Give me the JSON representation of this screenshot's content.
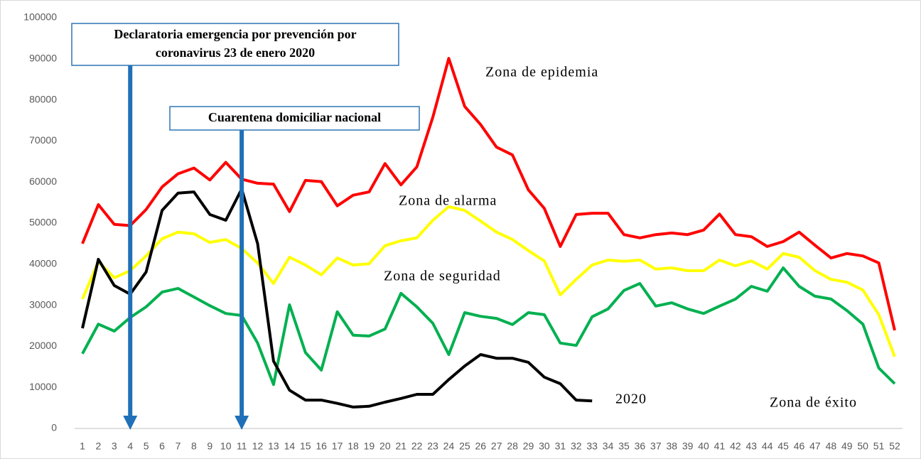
{
  "chart_data": {
    "type": "line",
    "categories": [
      1,
      2,
      3,
      4,
      5,
      6,
      7,
      8,
      9,
      10,
      11,
      12,
      13,
      14,
      15,
      16,
      17,
      18,
      19,
      20,
      21,
      22,
      23,
      24,
      25,
      26,
      27,
      28,
      29,
      30,
      31,
      32,
      33,
      34,
      35,
      36,
      37,
      38,
      39,
      40,
      41,
      42,
      43,
      44,
      45,
      46,
      47,
      48,
      49,
      50,
      51,
      52
    ],
    "ylim": [
      0,
      100000
    ],
    "yticks": [
      0,
      10000,
      20000,
      30000,
      40000,
      50000,
      60000,
      70000,
      80000,
      90000,
      100000
    ],
    "grid": false,
    "series": [
      {
        "name": "Zona de epidemia",
        "color": "#ff0000",
        "values": [
          45000,
          54500,
          49700,
          49400,
          53300,
          58800,
          62000,
          63400,
          60500,
          64800,
          60700,
          59700,
          59500,
          52800,
          60400,
          60100,
          54200,
          56800,
          57600,
          64500,
          59300,
          63700,
          75800,
          90100,
          78400,
          74000,
          68500,
          66600,
          58100,
          53600,
          44300,
          52100,
          52400,
          52400,
          47200,
          46400,
          47200,
          47600,
          47200,
          48300,
          52200,
          47200,
          46700,
          44300,
          45500,
          47800,
          44600,
          41500,
          42600,
          42000,
          40300,
          23900
        ]
      },
      {
        "name": "Zona de alarma",
        "color": "#ffff00",
        "values": [
          31500,
          40600,
          36700,
          38400,
          42000,
          46200,
          47800,
          47400,
          45300,
          46000,
          43800,
          40300,
          35300,
          41700,
          39800,
          37400,
          41500,
          39800,
          40100,
          44500,
          45700,
          46400,
          50700,
          54000,
          53100,
          50500,
          47800,
          46000,
          43300,
          40800,
          32500,
          36300,
          39800,
          41000,
          40700,
          41000,
          38800,
          39100,
          38400,
          38400,
          41000,
          39600,
          40800,
          38800,
          42600,
          41700,
          38400,
          36300,
          35600,
          33700,
          27700,
          17500
        ]
      },
      {
        "name": "Zona de seguridad",
        "color": "#00b050",
        "values": [
          18200,
          25400,
          23700,
          27000,
          29600,
          33200,
          34100,
          32000,
          29900,
          28000,
          27500,
          20800,
          10700,
          30100,
          18500,
          14200,
          28400,
          22700,
          22500,
          24200,
          32900,
          29600,
          25600,
          18000,
          28200,
          27300,
          26800,
          25300,
          28200,
          27700,
          20800,
          20200,
          27200,
          29100,
          33600,
          35300,
          29800,
          30600,
          29100,
          28000,
          29800,
          31500,
          34600,
          33400,
          39100,
          34600,
          32200,
          31500,
          28700,
          25400,
          14700,
          10900
        ]
      },
      {
        "name": "2020",
        "color": "#000000",
        "values": [
          24400,
          41200,
          34800,
          32700,
          38100,
          53100,
          57300,
          57600,
          52100,
          50700,
          58300,
          45000,
          16400,
          9300,
          6900,
          6900,
          6100,
          5200,
          5400,
          6400,
          7300,
          8300,
          8300,
          11900,
          15200,
          18000,
          17100,
          17100,
          16100,
          12500,
          10900,
          6900,
          6700,
          null,
          null,
          null,
          null,
          null,
          null,
          null,
          null,
          null,
          null,
          null,
          null,
          null,
          null,
          null,
          null,
          null,
          null,
          null
        ]
      }
    ],
    "extra_labels": [
      "Zona de éxito"
    ],
    "annotations": [
      {
        "lines": [
          "Declaratoria emergencia por prevención por",
          "coronavirus 23 de enero 2020"
        ]
      },
      {
        "lines": [
          "Cuarentena domiciliar nacional"
        ]
      }
    ]
  }
}
